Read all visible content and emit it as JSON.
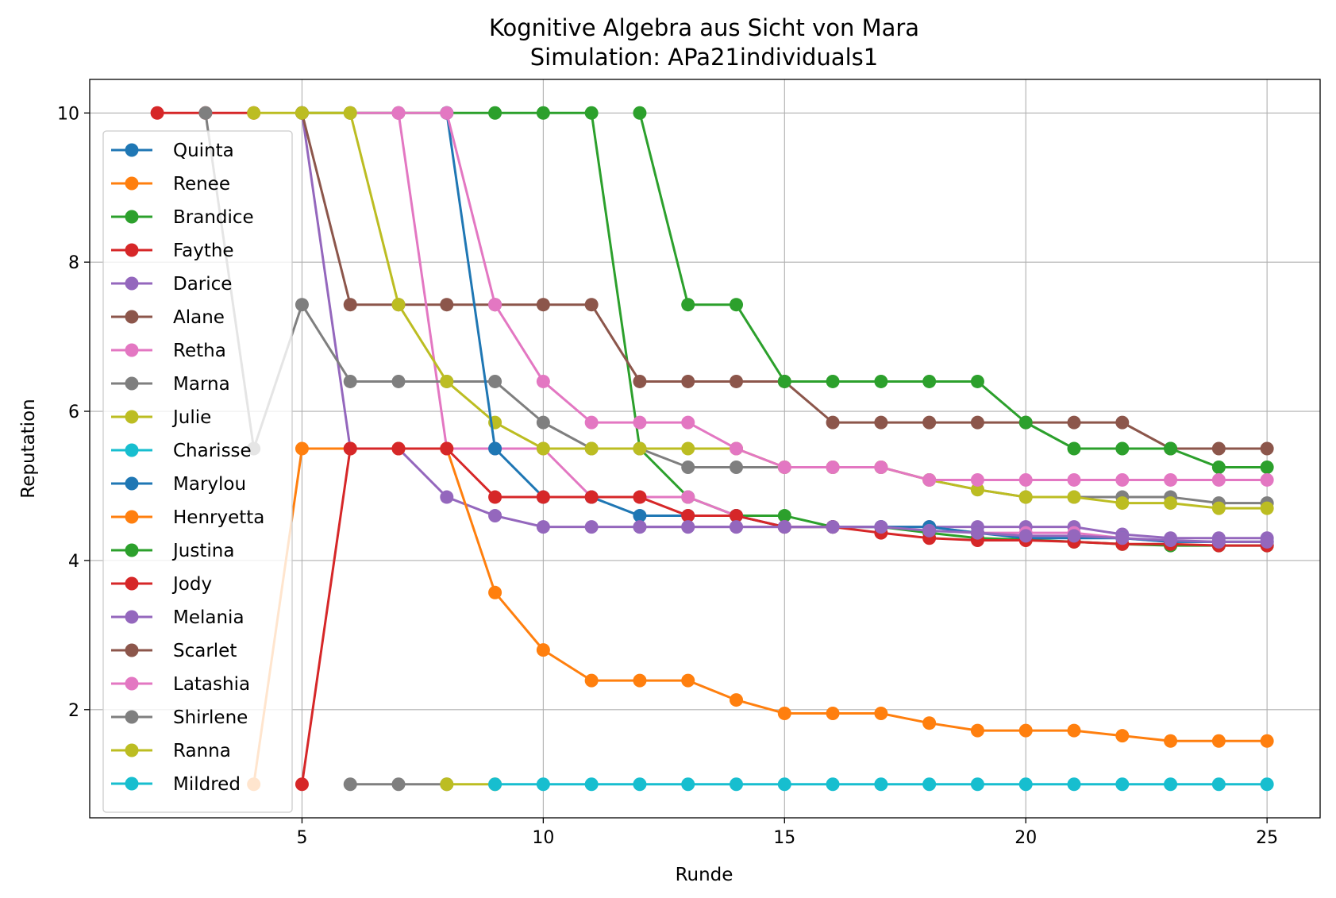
{
  "chart_data": {
    "type": "line",
    "title": "Kognitive Algebra aus Sicht von Mara",
    "subtitle": "Simulation: APa21individuals1",
    "xlabel": "Runde",
    "ylabel": "Reputation",
    "xlim": [
      0.6,
      26.1
    ],
    "ylim": [
      0.55,
      10.45
    ],
    "xticks": [
      5,
      10,
      15,
      20,
      25
    ],
    "yticks": [
      2,
      4,
      6,
      8,
      10
    ],
    "grid": true,
    "legend_position": "center-left",
    "series": [
      {
        "name": "Quinta",
        "color": "#1f77b4",
        "points": []
      },
      {
        "name": "Renee",
        "color": "#ff7f0e",
        "points": []
      },
      {
        "name": "Brandice",
        "color": "#2ca02c",
        "points": [
          [
            5,
            10
          ],
          [
            6,
            10
          ],
          [
            7,
            10
          ],
          [
            8,
            10
          ],
          [
            9,
            10
          ],
          [
            10,
            10
          ],
          [
            11,
            10
          ],
          [
            12,
            5.5
          ],
          [
            13,
            4.85
          ],
          [
            14,
            4.6
          ],
          [
            15,
            4.6
          ],
          [
            16,
            4.45
          ],
          [
            17,
            4.45
          ],
          [
            18,
            4.37
          ],
          [
            19,
            4.3
          ],
          [
            20,
            4.28
          ],
          [
            21,
            4.25
          ],
          [
            22,
            4.22
          ],
          [
            23,
            4.2
          ],
          [
            24,
            4.2
          ],
          [
            25,
            4.2
          ]
        ]
      },
      {
        "name": "Faythe",
        "color": "#d62728",
        "points": [
          [
            2,
            10
          ],
          [
            3,
            10
          ],
          [
            4,
            10
          ]
        ]
      },
      {
        "name": "Darice",
        "color": "#9467bd",
        "points": [
          [
            5,
            10
          ],
          [
            6,
            5.5
          ],
          [
            7,
            5.5
          ],
          [
            8,
            4.85
          ],
          [
            9,
            4.6
          ],
          [
            10,
            4.45
          ],
          [
            11,
            4.45
          ],
          [
            12,
            4.45
          ],
          [
            13,
            4.45
          ],
          [
            14,
            4.45
          ],
          [
            15,
            4.45
          ],
          [
            16,
            4.45
          ],
          [
            17,
            4.45
          ],
          [
            18,
            4.45
          ],
          [
            19,
            4.45
          ],
          [
            20,
            4.45
          ],
          [
            21,
            4.45
          ],
          [
            22,
            4.35
          ],
          [
            23,
            4.3
          ],
          [
            24,
            4.3
          ],
          [
            25,
            4.3
          ]
        ]
      },
      {
        "name": "Alane",
        "color": "#8c564b",
        "points": [
          [
            5,
            10
          ],
          [
            6,
            7.43
          ],
          [
            7,
            7.43
          ],
          [
            8,
            7.43
          ],
          [
            9,
            7.43
          ],
          [
            10,
            7.43
          ],
          [
            11,
            7.43
          ],
          [
            12,
            6.4
          ],
          [
            13,
            6.4
          ],
          [
            14,
            6.4
          ],
          [
            15,
            6.4
          ],
          [
            16,
            5.85
          ],
          [
            17,
            5.85
          ],
          [
            18,
            5.85
          ],
          [
            19,
            5.85
          ],
          [
            20,
            5.85
          ],
          [
            21,
            5.85
          ],
          [
            22,
            5.85
          ],
          [
            23,
            5.5
          ],
          [
            24,
            5.5
          ],
          [
            25,
            5.5
          ]
        ]
      },
      {
        "name": "Retha",
        "color": "#e377c2",
        "points": [
          [
            6,
            10
          ],
          [
            7,
            10
          ],
          [
            8,
            5.5
          ],
          [
            9,
            5.5
          ],
          [
            10,
            5.5
          ],
          [
            11,
            4.85
          ],
          [
            12,
            4.85
          ],
          [
            13,
            4.85
          ],
          [
            14,
            4.6
          ],
          [
            15,
            4.45
          ],
          [
            16,
            4.45
          ],
          [
            17,
            4.45
          ],
          [
            18,
            4.45
          ],
          [
            19,
            4.37
          ],
          [
            20,
            4.37
          ],
          [
            21,
            4.37
          ],
          [
            22,
            4.3
          ],
          [
            23,
            4.25
          ],
          [
            24,
            4.25
          ],
          [
            25,
            4.25
          ]
        ]
      },
      {
        "name": "Marna",
        "color": "#7f7f7f",
        "points": [
          [
            3,
            10
          ],
          [
            4,
            5.5
          ],
          [
            5,
            7.43
          ],
          [
            6,
            6.4
          ],
          [
            7,
            6.4
          ],
          [
            8,
            6.4
          ],
          [
            9,
            6.4
          ],
          [
            10,
            5.85
          ],
          [
            11,
            5.5
          ],
          [
            12,
            5.5
          ],
          [
            13,
            5.25
          ],
          [
            14,
            5.25
          ],
          [
            15,
            5.25
          ],
          [
            16,
            5.25
          ],
          [
            17,
            5.25
          ],
          [
            18,
            5.08
          ],
          [
            19,
            4.95
          ],
          [
            20,
            4.85
          ],
          [
            21,
            4.85
          ],
          [
            22,
            4.85
          ],
          [
            23,
            4.85
          ],
          [
            24,
            4.77
          ],
          [
            25,
            4.77
          ]
        ]
      },
      {
        "name": "Julie",
        "color": "#bcbd22",
        "points": [
          [
            4,
            10
          ],
          [
            5,
            10
          ],
          [
            6,
            10
          ],
          [
            7,
            7.43
          ],
          [
            8,
            6.4
          ],
          [
            9,
            5.85
          ],
          [
            10,
            5.5
          ],
          [
            11,
            5.5
          ],
          [
            12,
            5.5
          ],
          [
            13,
            5.5
          ],
          [
            14,
            5.5
          ],
          [
            15,
            5.25
          ],
          [
            16,
            5.25
          ],
          [
            17,
            5.25
          ],
          [
            18,
            5.08
          ],
          [
            19,
            4.95
          ],
          [
            20,
            4.85
          ],
          [
            21,
            4.85
          ],
          [
            22,
            4.77
          ],
          [
            23,
            4.77
          ],
          [
            24,
            4.7
          ],
          [
            25,
            4.7
          ]
        ]
      },
      {
        "name": "Charisse",
        "color": "#17becf",
        "points": []
      },
      {
        "name": "Marylou",
        "color": "#1f77b4",
        "points": [
          [
            8,
            10
          ],
          [
            9,
            5.5
          ],
          [
            10,
            4.85
          ],
          [
            11,
            4.85
          ],
          [
            12,
            4.6
          ],
          [
            13,
            4.6
          ],
          [
            14,
            4.6
          ],
          [
            15,
            4.45
          ],
          [
            16,
            4.45
          ],
          [
            17,
            4.45
          ],
          [
            18,
            4.45
          ],
          [
            19,
            4.37
          ],
          [
            20,
            4.3
          ],
          [
            21,
            4.3
          ],
          [
            22,
            4.3
          ],
          [
            23,
            4.25
          ],
          [
            24,
            4.25
          ],
          [
            25,
            4.25
          ]
        ]
      },
      {
        "name": "Henryetta",
        "color": "#ff7f0e",
        "points": [
          [
            4,
            1
          ],
          [
            5,
            5.5
          ],
          [
            6,
            5.5
          ],
          [
            7,
            5.5
          ],
          [
            8,
            5.5
          ],
          [
            9,
            3.57
          ],
          [
            10,
            2.8
          ],
          [
            11,
            2.39
          ],
          [
            12,
            2.39
          ],
          [
            13,
            2.39
          ],
          [
            14,
            2.13
          ],
          [
            15,
            1.95
          ],
          [
            16,
            1.95
          ],
          [
            17,
            1.95
          ],
          [
            18,
            1.82
          ],
          [
            19,
            1.72
          ],
          [
            20,
            1.72
          ],
          [
            21,
            1.72
          ],
          [
            22,
            1.65
          ],
          [
            23,
            1.58
          ],
          [
            24,
            1.58
          ],
          [
            25,
            1.58
          ]
        ]
      },
      {
        "name": "Justina",
        "color": "#2ca02c",
        "points": [
          [
            12,
            10
          ],
          [
            13,
            7.43
          ],
          [
            14,
            7.43
          ],
          [
            15,
            6.4
          ],
          [
            16,
            6.4
          ],
          [
            17,
            6.4
          ],
          [
            18,
            6.4
          ],
          [
            19,
            6.4
          ],
          [
            20,
            5.85
          ],
          [
            21,
            5.5
          ],
          [
            22,
            5.5
          ],
          [
            23,
            5.5
          ],
          [
            24,
            5.25
          ],
          [
            25,
            5.25
          ]
        ]
      },
      {
        "name": "Jody",
        "color": "#d62728",
        "points": [
          [
            5,
            1
          ],
          [
            6,
            5.5
          ],
          [
            7,
            5.5
          ],
          [
            8,
            5.5
          ],
          [
            9,
            4.85
          ],
          [
            10,
            4.85
          ],
          [
            11,
            4.85
          ],
          [
            12,
            4.85
          ],
          [
            13,
            4.6
          ],
          [
            14,
            4.6
          ],
          [
            15,
            4.45
          ],
          [
            16,
            4.45
          ],
          [
            17,
            4.37
          ],
          [
            18,
            4.3
          ],
          [
            19,
            4.27
          ],
          [
            20,
            4.27
          ],
          [
            21,
            4.25
          ],
          [
            22,
            4.22
          ],
          [
            23,
            4.22
          ],
          [
            24,
            4.2
          ],
          [
            25,
            4.2
          ]
        ]
      },
      {
        "name": "Melania",
        "color": "#9467bd",
        "points": [
          [
            12,
            4.45
          ],
          [
            13,
            4.45
          ],
          [
            14,
            4.45
          ],
          [
            15,
            4.45
          ],
          [
            16,
            4.45
          ],
          [
            17,
            4.45
          ],
          [
            18,
            4.4
          ],
          [
            19,
            4.37
          ],
          [
            20,
            4.33
          ],
          [
            21,
            4.33
          ],
          [
            22,
            4.3
          ],
          [
            23,
            4.27
          ],
          [
            24,
            4.25
          ],
          [
            25,
            4.25
          ]
        ]
      },
      {
        "name": "Scarlet",
        "color": "#8c564b",
        "points": []
      },
      {
        "name": "Latashia",
        "color": "#e377c2",
        "points": [
          [
            7,
            10
          ],
          [
            8,
            10
          ],
          [
            9,
            7.43
          ],
          [
            10,
            6.4
          ],
          [
            11,
            5.85
          ],
          [
            12,
            5.85
          ],
          [
            13,
            5.85
          ],
          [
            14,
            5.5
          ],
          [
            15,
            5.25
          ],
          [
            16,
            5.25
          ],
          [
            17,
            5.25
          ],
          [
            18,
            5.08
          ],
          [
            19,
            5.08
          ],
          [
            20,
            5.08
          ],
          [
            21,
            5.08
          ],
          [
            22,
            5.08
          ],
          [
            23,
            5.08
          ],
          [
            24,
            5.08
          ],
          [
            25,
            5.08
          ]
        ]
      },
      {
        "name": "Shirlene",
        "color": "#7f7f7f",
        "points": [
          [
            6,
            1
          ],
          [
            7,
            1
          ],
          [
            8,
            1
          ]
        ]
      },
      {
        "name": "Ranna",
        "color": "#bcbd22",
        "points": [
          [
            8,
            1
          ],
          [
            9,
            1
          ]
        ]
      },
      {
        "name": "Mildred",
        "color": "#17becf",
        "points": [
          [
            9,
            1
          ],
          [
            10,
            1
          ],
          [
            11,
            1
          ],
          [
            12,
            1
          ],
          [
            13,
            1
          ],
          [
            14,
            1
          ],
          [
            15,
            1
          ],
          [
            16,
            1
          ],
          [
            17,
            1
          ],
          [
            18,
            1
          ],
          [
            19,
            1
          ],
          [
            20,
            1
          ],
          [
            21,
            1
          ],
          [
            22,
            1
          ],
          [
            23,
            1
          ],
          [
            24,
            1
          ],
          [
            25,
            1
          ]
        ]
      }
    ]
  }
}
